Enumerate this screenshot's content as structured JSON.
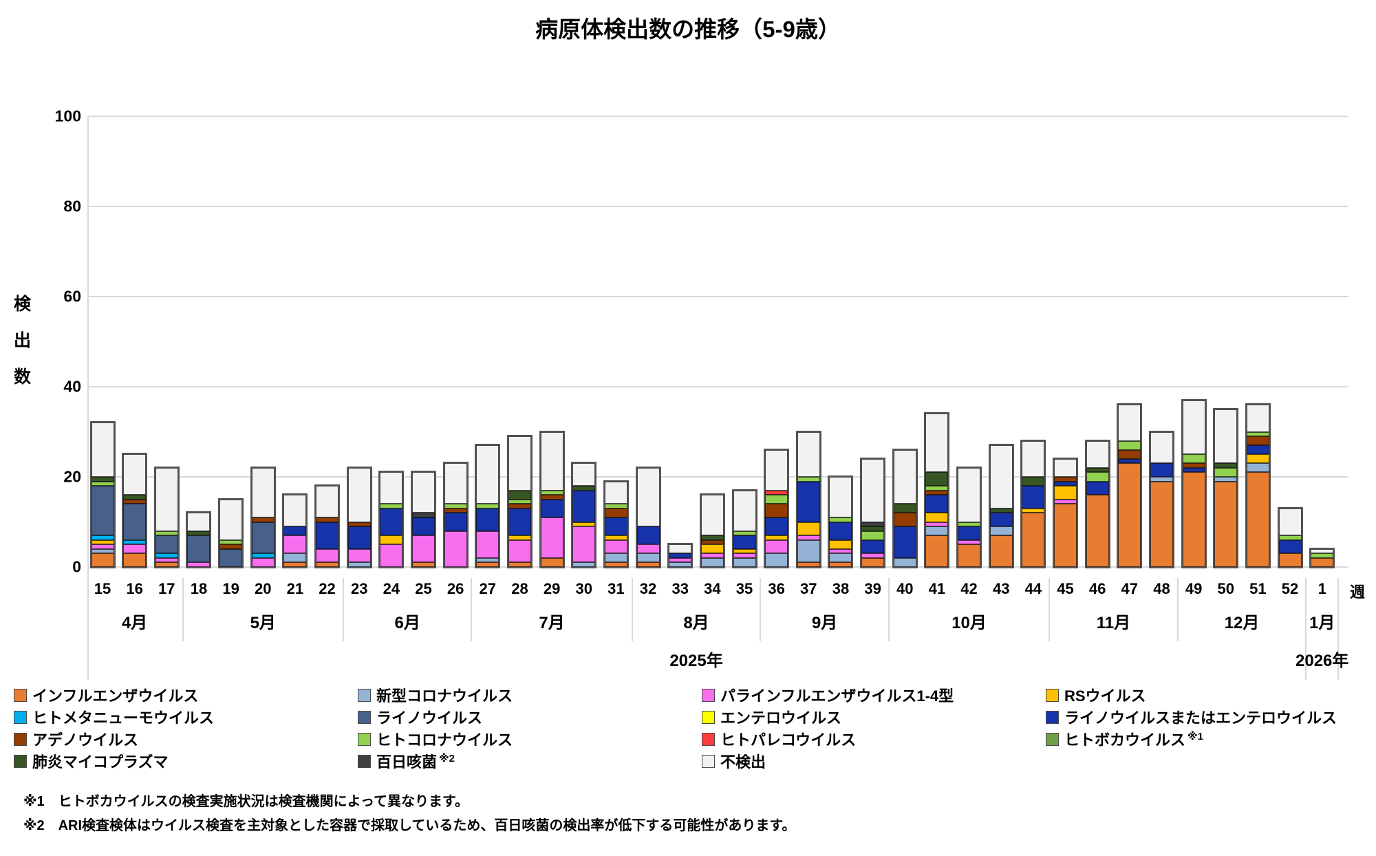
{
  "title": "病原体検出数の推移（5-9歳）",
  "y_axis": {
    "title_chars": [
      "検",
      "出",
      "数"
    ],
    "ticks": [
      0,
      20,
      40,
      60,
      80,
      100
    ]
  },
  "x_axis": {
    "unit_label": "週",
    "year_2025": "2025年",
    "year_2026": "2026年"
  },
  "series": {
    "flu": {
      "label": "インフルエンザウイルス",
      "color": "#E87D31"
    },
    "cov": {
      "label": "新型コロナウイルス",
      "color": "#95B3D7"
    },
    "para": {
      "label": "パラインフルエンザウイルス1-4型",
      "color": "#F76EEF"
    },
    "rs": {
      "label": "RSウイルス",
      "color": "#FFC000"
    },
    "mpv": {
      "label": "ヒトメタニューモウイルス",
      "color": "#00B0F0"
    },
    "rhino": {
      "label": "ライノウイルス",
      "color": "#48618C"
    },
    "entero": {
      "label": "エンテロウイルス",
      "color": "#FFFF00"
    },
    "re": {
      "label": "ライノウイルスまたはエンテロウイルス",
      "color": "#1733A9"
    },
    "adeno": {
      "label": "アデノウイルス",
      "color": "#953C00"
    },
    "hcov": {
      "label": "ヒトコロナウイルス",
      "color": "#92D050"
    },
    "parecho": {
      "label": "ヒトパレコウイルス",
      "color": "#FF3B3B"
    },
    "boca": {
      "label": "ヒトボカウイルス",
      "color": "#70A04A"
    },
    "myco": {
      "label": "肺炎マイコプラズマ",
      "color": "#375623"
    },
    "pert": {
      "label": "百日咳菌",
      "color": "#3F3F3F"
    },
    "none": {
      "label": "不検出",
      "color": "#F2F2F2"
    }
  },
  "stack_order": [
    "flu",
    "cov",
    "para",
    "rs",
    "mpv",
    "rhino",
    "entero",
    "re",
    "adeno",
    "hcov",
    "parecho",
    "boca",
    "myco",
    "pert",
    "none"
  ],
  "legend": {
    "columns": [
      [
        {
          "id": "flu"
        },
        {
          "id": "mpv"
        },
        {
          "id": "adeno"
        },
        {
          "id": "myco"
        }
      ],
      [
        {
          "id": "cov"
        },
        {
          "id": "rhino"
        },
        {
          "id": "hcov"
        },
        {
          "id": "pert",
          "note": "※2"
        }
      ],
      [
        {
          "id": "para"
        },
        {
          "id": "entero"
        },
        {
          "id": "parecho"
        },
        {
          "id": "none"
        }
      ],
      [
        {
          "id": "rs"
        },
        {
          "id": "re"
        },
        {
          "id": "boca",
          "note": "※1"
        }
      ]
    ]
  },
  "footnotes": [
    "※1　ヒトボカウイルスの検査実施状況は検査機関によって異なります。",
    "※2　ARI検査検体はウイルス検査を主対象とした容器で採取しているため、百日咳菌の検出率が低下する可能性があります。"
  ],
  "chart_data": {
    "type": "bar",
    "stacked": true,
    "ylabel": "検出数",
    "ylim": [
      0,
      100
    ],
    "grid": true,
    "months": [
      {
        "label": "4月",
        "weeks": 3,
        "year": "2025"
      },
      {
        "label": "5月",
        "weeks": 5,
        "year": "2025"
      },
      {
        "label": "6月",
        "weeks": 4,
        "year": "2025"
      },
      {
        "label": "7月",
        "weeks": 5,
        "year": "2025"
      },
      {
        "label": "8月",
        "weeks": 4,
        "year": "2025"
      },
      {
        "label": "9月",
        "weeks": 4,
        "year": "2025"
      },
      {
        "label": "10月",
        "weeks": 5,
        "year": "2025"
      },
      {
        "label": "11月",
        "weeks": 4,
        "year": "2025"
      },
      {
        "label": "12月",
        "weeks": 4,
        "year": "2025"
      },
      {
        "label": "1月",
        "weeks": 1,
        "year": "2026"
      }
    ],
    "bars": [
      {
        "week": "15",
        "segments": {
          "flu": 3,
          "cov": 1,
          "para": 1,
          "rs": 1,
          "mpv": 1,
          "rhino": 11,
          "hcov": 1,
          "myco": 1,
          "none": 12
        }
      },
      {
        "week": "16",
        "segments": {
          "flu": 3,
          "para": 2,
          "mpv": 1,
          "rhino": 8,
          "adeno": 1,
          "myco": 1,
          "none": 9
        }
      },
      {
        "week": "17",
        "segments": {
          "flu": 1,
          "para": 1,
          "mpv": 1,
          "rhino": 4,
          "hcov": 1,
          "none": 14
        }
      },
      {
        "week": "18",
        "segments": {
          "para": 1,
          "rhino": 6,
          "myco": 1,
          "none": 4
        }
      },
      {
        "week": "19",
        "segments": {
          "rhino": 4,
          "adeno": 1,
          "hcov": 1,
          "none": 9
        }
      },
      {
        "week": "20",
        "segments": {
          "para": 2,
          "mpv": 1,
          "rhino": 7,
          "adeno": 1,
          "none": 11
        }
      },
      {
        "week": "21",
        "segments": {
          "flu": 1,
          "cov": 2,
          "para": 4,
          "re": 2,
          "none": 7
        }
      },
      {
        "week": "22",
        "segments": {
          "flu": 1,
          "para": 3,
          "re": 6,
          "adeno": 1,
          "none": 7
        }
      },
      {
        "week": "23",
        "segments": {
          "cov": 1,
          "para": 3,
          "re": 5,
          "adeno": 1,
          "none": 12
        }
      },
      {
        "week": "24",
        "segments": {
          "para": 5,
          "rs": 2,
          "re": 6,
          "hcov": 1,
          "none": 7
        }
      },
      {
        "week": "25",
        "segments": {
          "flu": 1,
          "para": 6,
          "re": 4,
          "pert": 1,
          "none": 9
        }
      },
      {
        "week": "26",
        "segments": {
          "para": 8,
          "re": 4,
          "adeno": 1,
          "hcov": 1,
          "none": 9
        }
      },
      {
        "week": "27",
        "segments": {
          "flu": 1,
          "cov": 1,
          "para": 6,
          "re": 5,
          "hcov": 1,
          "none": 13
        }
      },
      {
        "week": "28",
        "segments": {
          "flu": 1,
          "para": 5,
          "rs": 1,
          "re": 6,
          "adeno": 1,
          "hcov": 1,
          "myco": 2,
          "none": 12
        }
      },
      {
        "week": "29",
        "segments": {
          "flu": 2,
          "para": 9,
          "re": 4,
          "adeno": 1,
          "hcov": 1,
          "none": 13
        }
      },
      {
        "week": "30",
        "segments": {
          "cov": 1,
          "para": 8,
          "rs": 1,
          "re": 7,
          "myco": 1,
          "none": 5
        }
      },
      {
        "week": "31",
        "segments": {
          "flu": 1,
          "cov": 2,
          "para": 3,
          "rs": 1,
          "re": 4,
          "adeno": 2,
          "hcov": 1,
          "none": 5
        }
      },
      {
        "week": "32",
        "segments": {
          "flu": 1,
          "cov": 2,
          "para": 2,
          "re": 4,
          "none": 13
        }
      },
      {
        "week": "33",
        "segments": {
          "cov": 1,
          "para": 1,
          "re": 1,
          "none": 2
        }
      },
      {
        "week": "34",
        "segments": {
          "cov": 2,
          "para": 1,
          "rs": 2,
          "adeno": 1,
          "myco": 1,
          "none": 9
        }
      },
      {
        "week": "35",
        "segments": {
          "cov": 2,
          "para": 1,
          "rs": 1,
          "re": 3,
          "hcov": 1,
          "none": 9
        }
      },
      {
        "week": "36",
        "segments": {
          "cov": 3,
          "para": 3,
          "rs": 1,
          "re": 4,
          "adeno": 3,
          "hcov": 2,
          "parecho": 1,
          "none": 9
        }
      },
      {
        "week": "37",
        "segments": {
          "flu": 1,
          "cov": 5,
          "para": 1,
          "rs": 3,
          "re": 9,
          "hcov": 1,
          "none": 10
        }
      },
      {
        "week": "38",
        "segments": {
          "flu": 1,
          "cov": 2,
          "para": 1,
          "rs": 2,
          "re": 4,
          "hcov": 1,
          "none": 9
        }
      },
      {
        "week": "39",
        "segments": {
          "flu": 2,
          "para": 1,
          "re": 3,
          "hcov": 2,
          "myco": 1,
          "pert": 1,
          "none": 14
        }
      },
      {
        "week": "40",
        "segments": {
          "cov": 2,
          "re": 7,
          "adeno": 3,
          "myco": 2,
          "none": 12
        }
      },
      {
        "week": "41",
        "segments": {
          "flu": 7,
          "cov": 2,
          "para": 1,
          "rs": 2,
          "re": 4,
          "adeno": 1,
          "hcov": 1,
          "myco": 3,
          "none": 13
        }
      },
      {
        "week": "42",
        "segments": {
          "flu": 5,
          "para": 1,
          "re": 3,
          "hcov": 1,
          "none": 12
        }
      },
      {
        "week": "43",
        "segments": {
          "flu": 7,
          "cov": 2,
          "re": 3,
          "myco": 1,
          "none": 14
        }
      },
      {
        "week": "44",
        "segments": {
          "flu": 12,
          "rs": 1,
          "re": 5,
          "myco": 2,
          "none": 8
        }
      },
      {
        "week": "45",
        "segments": {
          "flu": 14,
          "para": 1,
          "rs": 3,
          "re": 1,
          "adeno": 1,
          "none": 4
        }
      },
      {
        "week": "46",
        "segments": {
          "flu": 16,
          "re": 3,
          "hcov": 2,
          "myco": 1,
          "none": 6
        }
      },
      {
        "week": "47",
        "segments": {
          "flu": 23,
          "re": 1,
          "adeno": 2,
          "hcov": 2,
          "none": 8
        }
      },
      {
        "week": "48",
        "segments": {
          "flu": 19,
          "cov": 1,
          "re": 3,
          "none": 7
        }
      },
      {
        "week": "49",
        "segments": {
          "flu": 21,
          "re": 1,
          "adeno": 1,
          "hcov": 2,
          "none": 12
        }
      },
      {
        "week": "50",
        "segments": {
          "flu": 19,
          "cov": 1,
          "hcov": 2,
          "myco": 1,
          "none": 12
        }
      },
      {
        "week": "51",
        "segments": {
          "flu": 21,
          "cov": 2,
          "rs": 2,
          "re": 2,
          "adeno": 2,
          "hcov": 1,
          "none": 6
        }
      },
      {
        "week": "52",
        "segments": {
          "flu": 3,
          "re": 3,
          "hcov": 1,
          "none": 6
        }
      },
      {
        "week": "1",
        "segments": {
          "flu": 2,
          "hcov": 1,
          "none": 1
        }
      }
    ]
  }
}
